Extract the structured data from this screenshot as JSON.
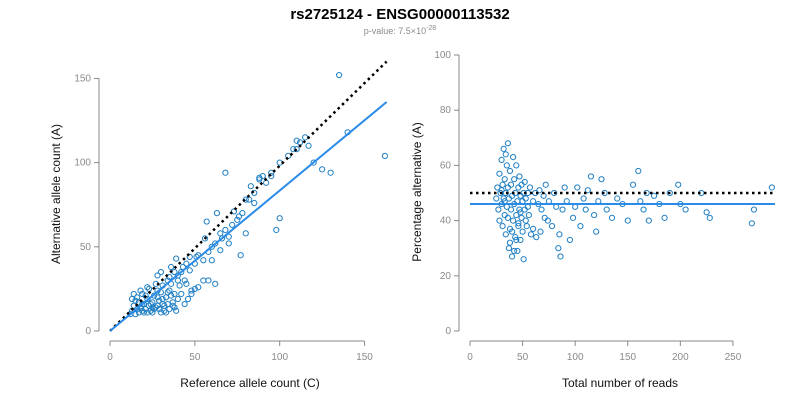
{
  "header": {
    "title": "rs2725124 - ENSG00000113532",
    "subtitle_prefix": "p-value: 7.5×10",
    "subtitle_exponent": "-28"
  },
  "colors": {
    "points": "#1f7fc4",
    "fit": "#2b8be8",
    "reference": "#000000",
    "axis": "#888888"
  },
  "chart_data": [
    {
      "type": "scatter",
      "xlabel": "Reference allele count (C)",
      "ylabel": "Alternative allele count (A)",
      "xlim": [
        0,
        165
      ],
      "ylim": [
        0,
        155
      ],
      "xticks": [
        0,
        50,
        100,
        150
      ],
      "yticks": [
        0,
        50,
        100,
        150
      ],
      "fit_line": [
        [
          0,
          0
        ],
        [
          163,
          136
        ]
      ],
      "reference_line": [
        [
          0,
          0
        ],
        [
          163,
          160
        ]
      ],
      "points": [
        [
          12,
          10
        ],
        [
          13,
          12
        ],
        [
          14,
          15
        ],
        [
          15,
          18
        ],
        [
          16,
          20
        ],
        [
          17,
          11
        ],
        [
          18,
          14
        ],
        [
          19,
          22
        ],
        [
          20,
          16
        ],
        [
          21,
          13
        ],
        [
          22,
          19
        ],
        [
          23,
          25
        ],
        [
          24,
          12
        ],
        [
          25,
          17
        ],
        [
          26,
          21
        ],
        [
          27,
          14
        ],
        [
          28,
          24
        ],
        [
          29,
          18
        ],
        [
          30,
          11
        ],
        [
          31,
          27
        ],
        [
          32,
          15
        ],
        [
          33,
          20
        ],
        [
          34,
          23
        ],
        [
          35,
          13
        ],
        [
          36,
          28
        ],
        [
          37,
          17
        ],
        [
          38,
          22
        ],
        [
          39,
          12
        ],
        [
          40,
          19
        ],
        [
          14,
          22
        ],
        [
          16,
          13
        ],
        [
          18,
          24
        ],
        [
          20,
          11
        ],
        [
          22,
          26
        ],
        [
          24,
          16
        ],
        [
          26,
          13
        ],
        [
          28,
          20
        ],
        [
          30,
          23
        ],
        [
          32,
          12
        ],
        [
          34,
          16
        ],
        [
          36,
          21
        ],
        [
          38,
          14
        ],
        [
          15,
          10
        ],
        [
          17,
          17
        ],
        [
          19,
          12
        ],
        [
          21,
          21
        ],
        [
          23,
          15
        ],
        [
          25,
          11
        ],
        [
          27,
          28
        ],
        [
          29,
          13
        ],
        [
          31,
          19
        ],
        [
          33,
          11
        ],
        [
          35,
          24
        ],
        [
          37,
          15
        ],
        [
          13,
          19
        ],
        [
          19,
          16
        ],
        [
          25,
          14
        ],
        [
          31,
          16
        ],
        [
          22,
          11
        ],
        [
          28,
          15
        ],
        [
          42,
          22
        ],
        [
          44,
          16
        ],
        [
          46,
          19
        ],
        [
          48,
          24
        ],
        [
          45,
          28
        ],
        [
          40,
          30
        ],
        [
          38,
          35
        ],
        [
          43,
          38
        ],
        [
          47,
          36
        ],
        [
          50,
          40
        ],
        [
          55,
          42
        ],
        [
          52,
          45
        ],
        [
          58,
          47
        ],
        [
          60,
          50
        ],
        [
          56,
          55
        ],
        [
          62,
          52
        ],
        [
          65,
          58
        ],
        [
          68,
          60
        ],
        [
          70,
          52
        ],
        [
          72,
          63
        ],
        [
          75,
          66
        ],
        [
          78,
          70
        ],
        [
          80,
          78
        ],
        [
          85,
          82
        ],
        [
          88,
          90
        ],
        [
          90,
          92
        ],
        [
          95,
          94
        ],
        [
          100,
          100
        ],
        [
          105,
          104
        ],
        [
          110,
          108
        ],
        [
          112,
          112
        ],
        [
          115,
          115
        ],
        [
          120,
          100
        ],
        [
          125,
          96
        ],
        [
          130,
          94
        ],
        [
          135,
          152
        ],
        [
          140,
          118
        ],
        [
          162,
          104
        ],
        [
          100,
          67
        ],
        [
          95,
          92
        ],
        [
          85,
          76
        ],
        [
          80,
          58
        ],
        [
          70,
          56
        ],
        [
          65,
          48
        ],
        [
          60,
          42
        ],
        [
          55,
          30
        ],
        [
          50,
          25
        ],
        [
          48,
          22
        ],
        [
          45,
          40
        ],
        [
          42,
          35
        ],
        [
          40,
          33
        ],
        [
          35,
          32
        ],
        [
          30,
          35
        ],
        [
          28,
          33
        ],
        [
          36,
          38
        ],
        [
          34,
          30
        ],
        [
          44,
          30
        ],
        [
          47,
          44
        ],
        [
          58,
          30
        ],
        [
          66,
          55
        ],
        [
          73,
          71
        ],
        [
          77,
          45
        ],
        [
          82,
          78
        ],
        [
          92,
          88
        ],
        [
          108,
          108
        ],
        [
          110,
          113
        ],
        [
          117,
          110
        ],
        [
          52,
          26
        ],
        [
          62,
          28
        ],
        [
          68,
          94
        ],
        [
          76,
          68
        ],
        [
          98,
          60
        ],
        [
          83,
          86
        ],
        [
          88,
          91
        ],
        [
          57,
          65
        ],
        [
          63,
          70
        ],
        [
          39,
          43
        ],
        [
          51,
          44
        ],
        [
          41,
          27
        ]
      ]
    },
    {
      "type": "scatter",
      "xlabel": "Total number of reads",
      "ylabel": "Percentage alternative (A)",
      "xlim": [
        0,
        290
      ],
      "ylim": [
        0,
        100
      ],
      "xticks": [
        0,
        50,
        100,
        150,
        200,
        250
      ],
      "yticks": [
        0,
        20,
        40,
        60,
        80,
        100
      ],
      "fit_y": 46,
      "reference_y": 50,
      "points": [
        [
          25,
          48
        ],
        [
          26,
          52
        ],
        [
          27,
          44
        ],
        [
          28,
          57
        ],
        [
          28,
          40
        ],
        [
          29,
          50
        ],
        [
          30,
          46
        ],
        [
          30,
          62
        ],
        [
          31,
          38
        ],
        [
          31,
          53
        ],
        [
          32,
          48
        ],
        [
          32,
          66
        ],
        [
          33,
          42
        ],
        [
          33,
          55
        ],
        [
          34,
          35
        ],
        [
          34,
          50
        ],
        [
          35,
          60
        ],
        [
          35,
          45
        ],
        [
          36,
          41
        ],
        [
          36,
          52
        ],
        [
          37,
          30
        ],
        [
          37,
          48
        ],
        [
          38,
          58
        ],
        [
          38,
          37
        ],
        [
          39,
          44
        ],
        [
          39,
          53
        ],
        [
          40,
          27
        ],
        [
          40,
          49
        ],
        [
          41,
          63
        ],
        [
          41,
          40
        ],
        [
          42,
          46
        ],
        [
          42,
          55
        ],
        [
          43,
          34
        ],
        [
          43,
          50
        ],
        [
          44,
          42
        ],
        [
          44,
          60
        ],
        [
          45,
          29
        ],
        [
          45,
          47
        ],
        [
          46,
          52
        ],
        [
          46,
          39
        ],
        [
          47,
          44
        ],
        [
          47,
          56
        ],
        [
          48,
          33
        ],
        [
          48,
          49
        ],
        [
          49,
          41
        ],
        [
          49,
          53
        ],
        [
          50,
          36
        ],
        [
          50,
          47
        ],
        [
          51,
          26
        ],
        [
          51,
          50
        ],
        [
          52,
          44
        ],
        [
          52,
          54
        ],
        [
          53,
          40
        ],
        [
          53,
          48
        ],
        [
          54,
          38
        ],
        [
          55,
          50
        ],
        [
          55,
          45
        ],
        [
          56,
          42
        ],
        [
          57,
          52
        ],
        [
          58,
          35
        ],
        [
          60,
          47
        ],
        [
          60,
          37
        ],
        [
          62,
          50
        ],
        [
          63,
          34
        ],
        [
          65,
          46
        ],
        [
          66,
          51
        ],
        [
          67,
          36
        ],
        [
          68,
          44
        ],
        [
          70,
          49
        ],
        [
          71,
          41
        ],
        [
          72,
          53
        ],
        [
          74,
          40
        ],
        [
          75,
          47
        ],
        [
          78,
          38
        ],
        [
          80,
          50
        ],
        [
          82,
          45
        ],
        [
          84,
          30
        ],
        [
          85,
          35
        ],
        [
          86,
          27
        ],
        [
          88,
          44
        ],
        [
          90,
          52
        ],
        [
          92,
          47
        ],
        [
          95,
          33
        ],
        [
          98,
          41
        ],
        [
          100,
          45
        ],
        [
          102,
          52
        ],
        [
          105,
          38
        ],
        [
          108,
          48
        ],
        [
          110,
          44
        ],
        [
          112,
          51
        ],
        [
          115,
          56
        ],
        [
          118,
          42
        ],
        [
          120,
          36
        ],
        [
          122,
          47
        ],
        [
          125,
          55
        ],
        [
          128,
          50
        ],
        [
          130,
          44
        ],
        [
          135,
          41
        ],
        [
          140,
          48
        ],
        [
          145,
          46
        ],
        [
          150,
          40
        ],
        [
          155,
          53
        ],
        [
          160,
          58
        ],
        [
          162,
          47
        ],
        [
          165,
          44
        ],
        [
          168,
          50
        ],
        [
          170,
          40
        ],
        [
          175,
          49
        ],
        [
          180,
          46
        ],
        [
          185,
          41
        ],
        [
          190,
          50
        ],
        [
          198,
          53
        ],
        [
          200,
          46
        ],
        [
          205,
          44
        ],
        [
          220,
          50
        ],
        [
          225,
          43
        ],
        [
          228,
          41
        ],
        [
          268,
          39
        ],
        [
          270,
          44
        ],
        [
          287,
          52
        ],
        [
          34,
          64
        ],
        [
          36,
          68
        ],
        [
          40,
          36
        ],
        [
          44,
          33
        ],
        [
          46,
          38
        ],
        [
          38,
          32
        ],
        [
          42,
          29
        ],
        [
          30,
          51
        ],
        [
          33,
          47
        ],
        [
          48,
          43
        ]
      ]
    }
  ]
}
